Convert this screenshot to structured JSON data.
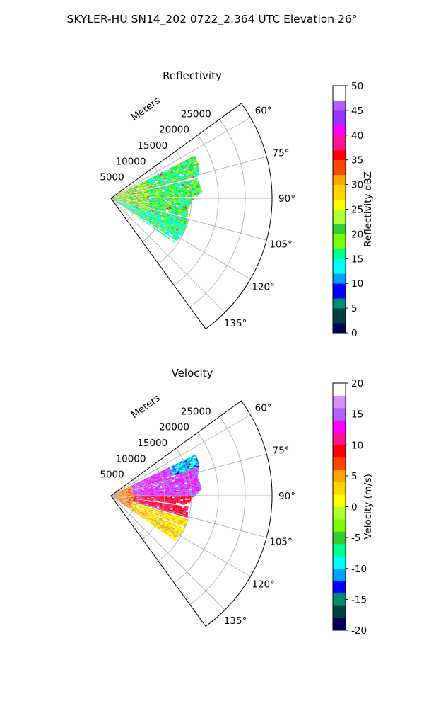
{
  "figure": {
    "suptitle": "SKYLER-HU  SN14_202  0722_2.364 UTC Elevation 26°"
  },
  "chart_data": [
    {
      "type": "polar-sector-heatmap",
      "title": "Reflectivity",
      "range_label": "Meters",
      "theta_range_deg": [
        54,
        144
      ],
      "r_max": 30000,
      "grid": true,
      "r_ticks": [
        5000,
        10000,
        15000,
        20000,
        25000
      ],
      "theta_ticks_deg": [
        60,
        75,
        90,
        105,
        120,
        135
      ],
      "data_extent": {
        "r_min_m": 0,
        "r_max_m": 18000,
        "theta_min_deg": 63,
        "theta_max_deg": 125,
        "dominant_values_dBZ": [
          15,
          22
        ],
        "outer_edge_range_m": [
          {
            "theta": 63,
            "r": 17500
          },
          {
            "theta": 70,
            "r": 17500
          },
          {
            "theta": 78,
            "r": 16500
          },
          {
            "theta": 86,
            "r": 17000
          },
          {
            "theta": 92,
            "r": 15000
          },
          {
            "theta": 100,
            "r": 14500
          },
          {
            "theta": 108,
            "r": 15000
          },
          {
            "theta": 116,
            "r": 15000
          },
          {
            "theta": 124,
            "r": 14500
          }
        ]
      },
      "colorbar": {
        "label": "Reflectivity dBZ",
        "vmin": 0,
        "vmax": 50,
        "ticks": [
          0,
          5,
          10,
          15,
          20,
          25,
          30,
          35,
          40,
          45,
          50
        ],
        "levels": 50,
        "colors": [
          "#00005a",
          "#004040",
          "#008c6e",
          "#0000ff",
          "#00a0ff",
          "#00ffff",
          "#00ff8c",
          "#7cfc00",
          "#32cd32",
          "#adff2f",
          "#ffff00",
          "#ffd700",
          "#ffa500",
          "#ff4500",
          "#ff0000",
          "#ff1493",
          "#ff00ff",
          "#9a32ff",
          "#b060ff",
          "#ffffff"
        ]
      }
    },
    {
      "type": "polar-sector-heatmap",
      "title": "Velocity",
      "range_label": "Meters",
      "theta_range_deg": [
        54,
        144
      ],
      "r_max": 30000,
      "grid": true,
      "r_ticks": [
        5000,
        10000,
        15000,
        20000,
        25000
      ],
      "theta_ticks_deg": [
        60,
        75,
        90,
        105,
        120,
        135
      ],
      "data_extent": {
        "r_min_m": 0,
        "r_max_m": 18000,
        "theta_min_deg": 63,
        "theta_max_deg": 125,
        "dominant_values_ms": [
          2,
          13
        ],
        "outer_edge_range_m": [
          {
            "theta": 63,
            "r": 17500
          },
          {
            "theta": 70,
            "r": 17500
          },
          {
            "theta": 78,
            "r": 16500
          },
          {
            "theta": 86,
            "r": 17000
          },
          {
            "theta": 92,
            "r": 15000
          },
          {
            "theta": 100,
            "r": 14500
          },
          {
            "theta": 108,
            "r": 15000
          },
          {
            "theta": 116,
            "r": 15000
          },
          {
            "theta": 124,
            "r": 14500
          }
        ]
      },
      "colorbar": {
        "label": "Velocity (m/s)",
        "vmin": -20,
        "vmax": 20,
        "ticks": [
          -20,
          -15,
          -10,
          -5,
          0,
          5,
          10,
          15,
          20
        ],
        "levels": 40,
        "colors": [
          "#00005a",
          "#004040",
          "#008c6e",
          "#0000ff",
          "#00a0ff",
          "#00ffff",
          "#00ff8c",
          "#32cd32",
          "#7cfc00",
          "#adff2f",
          "#ffff00",
          "#ffd700",
          "#ffa500",
          "#ff4500",
          "#ff0000",
          "#ff1493",
          "#ff00ff",
          "#b060ff",
          "#d890ff",
          "#ffffff"
        ]
      }
    }
  ]
}
